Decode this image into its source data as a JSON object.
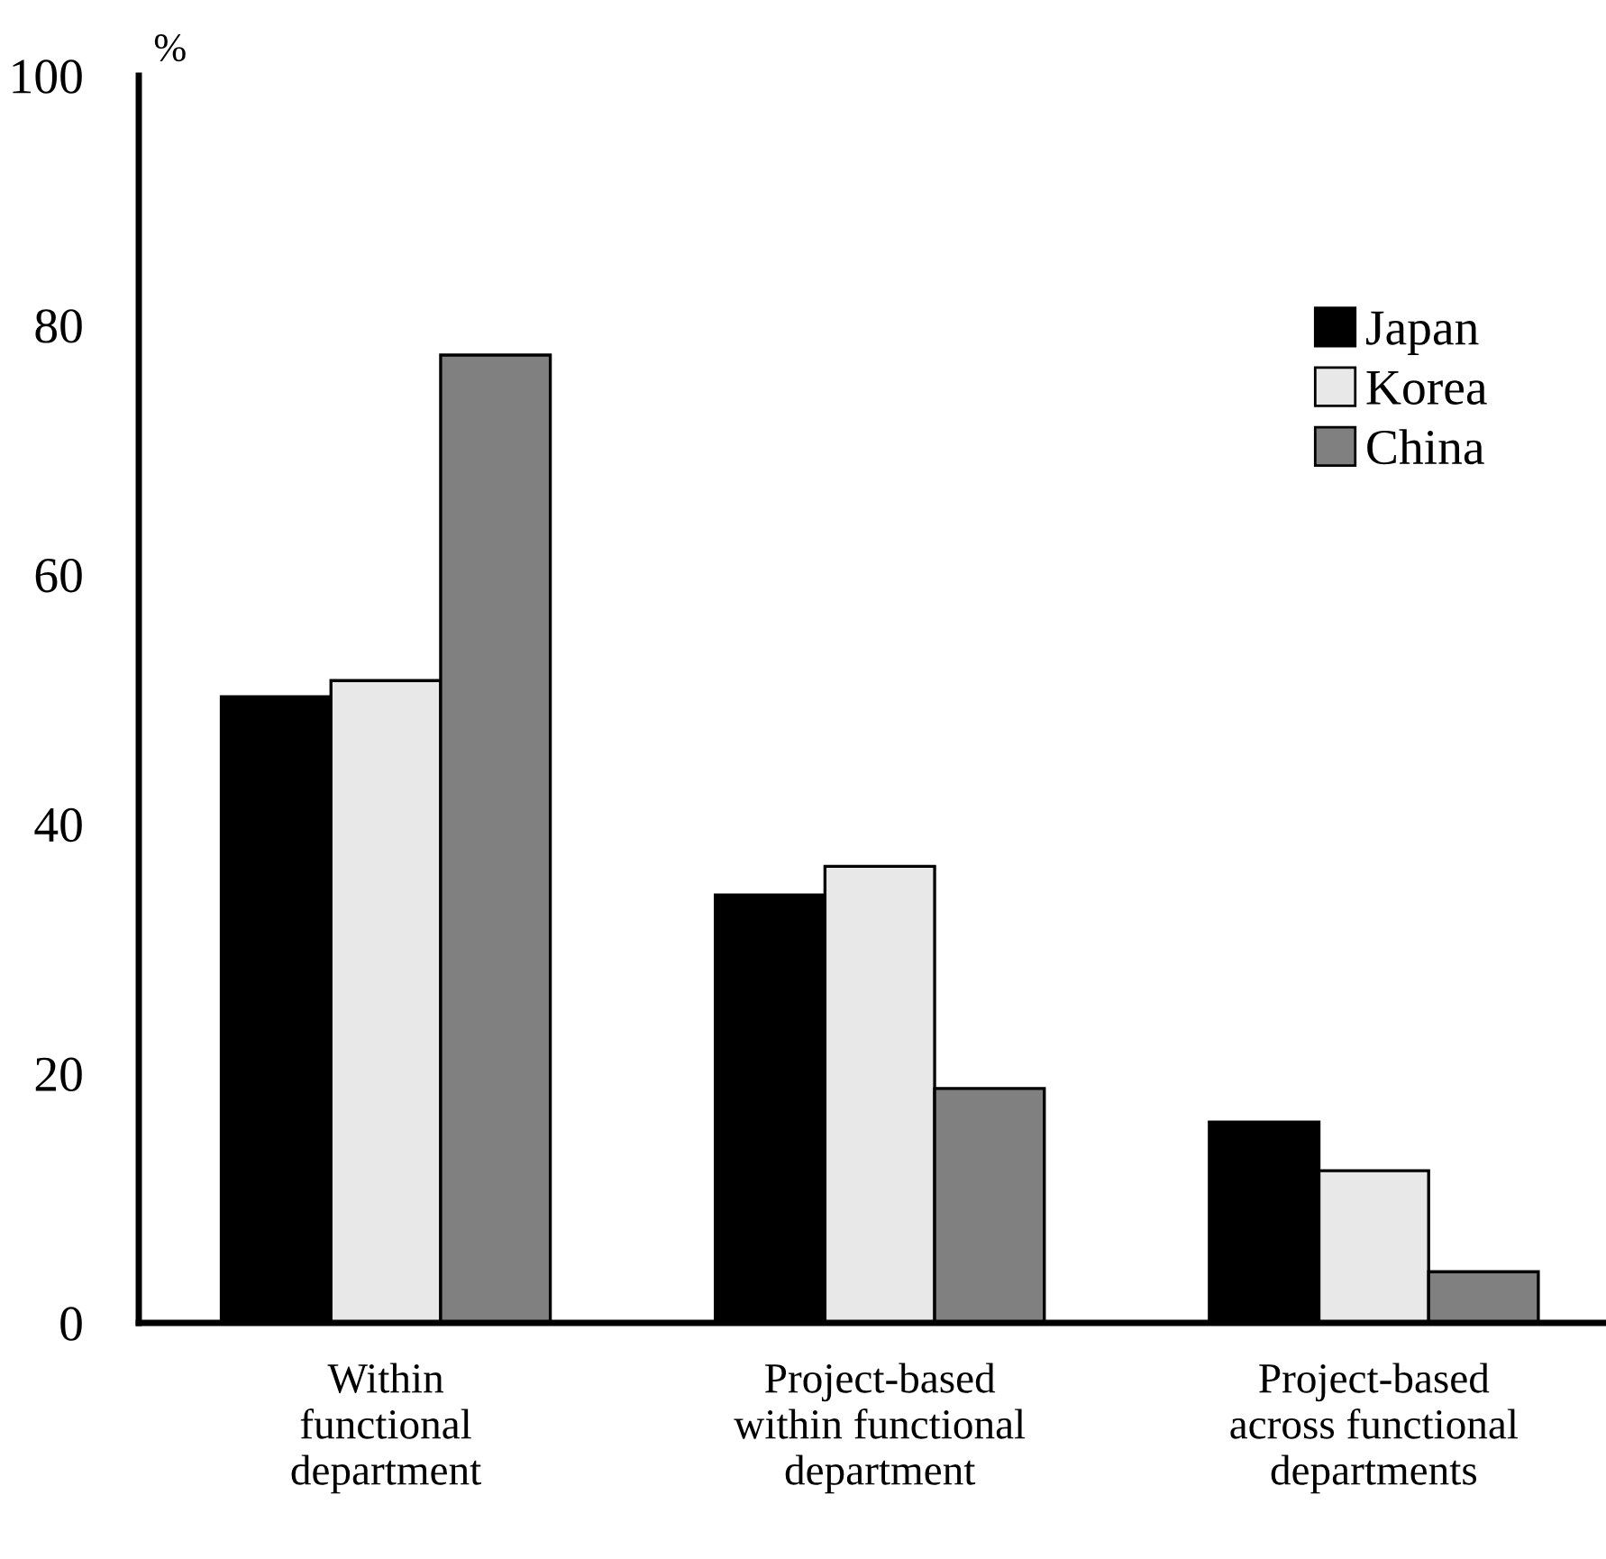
{
  "chart_data": {
    "type": "bar",
    "ylabel": "%",
    "categories": [
      "Within\nfunctional\ndepartment",
      "Project-based\nwithin functional\ndepartment",
      "Project-based\nacross functional\ndepartments"
    ],
    "series": [
      {
        "name": "Japan",
        "color": "#000000",
        "values": [
          50.2,
          34.3,
          16.1
        ]
      },
      {
        "name": "Korea",
        "color": "#e8e8e8",
        "values": [
          51.5,
          36.6,
          12.2
        ]
      },
      {
        "name": "China",
        "color": "#808080",
        "values": [
          77.6,
          18.8,
          4.1
        ]
      }
    ],
    "ylim": [
      0,
      100
    ],
    "yticks": [
      0,
      20,
      40,
      60,
      80,
      100
    ],
    "grid": false,
    "legend": "top right"
  }
}
